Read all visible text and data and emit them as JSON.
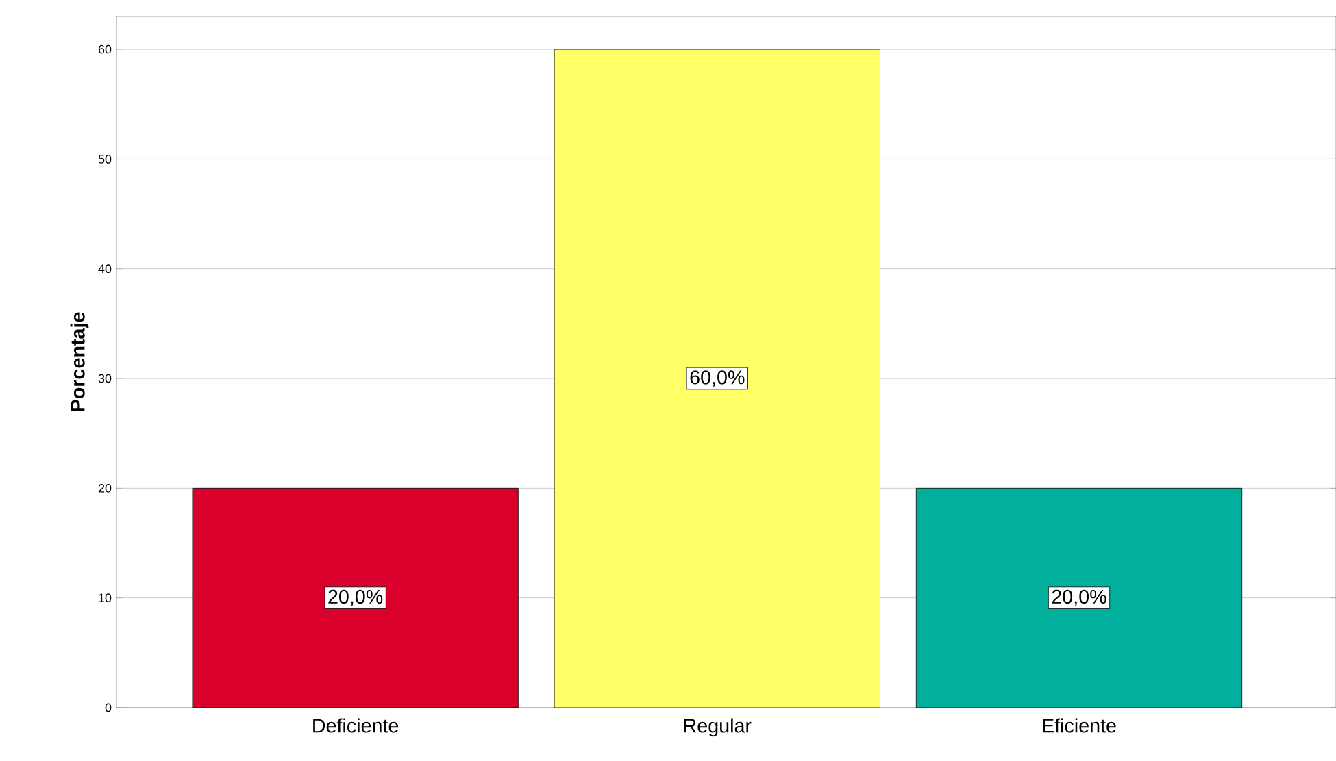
{
  "chart_data": {
    "type": "bar",
    "ylabel": "Porcentaje",
    "categories": [
      "Deficiente",
      "Regular",
      "Eficiente"
    ],
    "values": [
      20,
      60,
      20
    ],
    "colors": [
      "#d9002c",
      "#ffff66",
      "#00b09c"
    ],
    "value_labels": [
      "20,0%",
      "60,0%",
      "20,0%"
    ],
    "ylim": [
      0,
      63
    ],
    "yticks": [
      0,
      10,
      20,
      30,
      40,
      50,
      60
    ],
    "grid": "y"
  }
}
